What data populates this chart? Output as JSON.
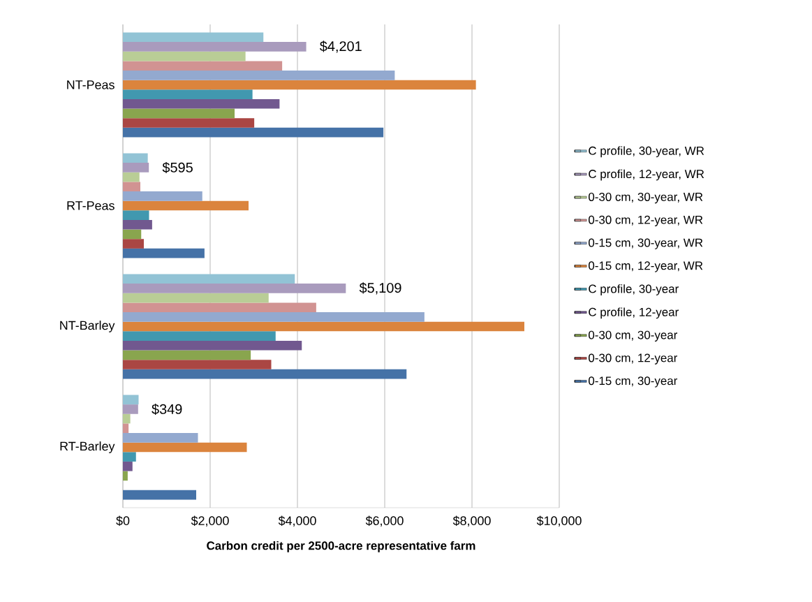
{
  "chart_data": {
    "type": "bar",
    "orientation": "horizontal",
    "categories": [
      "NT-Peas",
      "RT-Peas",
      "NT-Barley",
      "RT-Barley"
    ],
    "xlabel": "Carbon credit per 2500-acre representative farm",
    "xlim": [
      0,
      10000
    ],
    "xticks": [
      {
        "value": 0,
        "label": "$0"
      },
      {
        "value": 2000,
        "label": "$2,000"
      },
      {
        "value": 4000,
        "label": "$4,000"
      },
      {
        "value": 6000,
        "label": "$6,000"
      },
      {
        "value": 8000,
        "label": "$8,000"
      },
      {
        "value": 10000,
        "label": "$10,000"
      }
    ],
    "grid": "x",
    "legend": "right",
    "series": [
      {
        "name": "0-15 cm, 30-year",
        "color": "#4572a7",
        "values": [
          5970,
          1870,
          6500,
          1680
        ]
      },
      {
        "name": "0-30 cm, 12-year",
        "color": "#aa4643",
        "values": [
          3010,
          480,
          3400,
          0
        ]
      },
      {
        "name": "0-30 cm, 30-year",
        "color": "#89a54e",
        "values": [
          2560,
          420,
          2930,
          110
        ]
      },
      {
        "name": "C profile, 12-year",
        "color": "#71588f",
        "values": [
          3590,
          670,
          4100,
          220
        ]
      },
      {
        "name": "C profile, 30-year",
        "color": "#4198af",
        "values": [
          2970,
          600,
          3500,
          300
        ]
      },
      {
        "name": "0-15 cm, 12-year, WR",
        "color": "#db843d",
        "values": [
          8090,
          2880,
          9200,
          2840
        ]
      },
      {
        "name": "0-15 cm, 30-year, WR",
        "color": "#93a9cf",
        "values": [
          6230,
          1820,
          6910,
          1720
        ]
      },
      {
        "name": "0-30 cm, 12-year, WR",
        "color": "#d19392",
        "values": [
          3650,
          400,
          4430,
          130
        ]
      },
      {
        "name": "0-30 cm, 30-year, WR",
        "color": "#b9cd96",
        "values": [
          2810,
          380,
          3340,
          170
        ]
      },
      {
        "name": "C profile, 12-year, WR",
        "color": "#a99bbd",
        "values": [
          4201,
          595,
          5109,
          349
        ],
        "value_labels": [
          "$4,201",
          "$595",
          "$5,109",
          "$349"
        ]
      },
      {
        "name": "C profile, 30-year, WR",
        "color": "#92c3d5",
        "values": [
          3220,
          570,
          3940,
          360
        ]
      }
    ]
  }
}
